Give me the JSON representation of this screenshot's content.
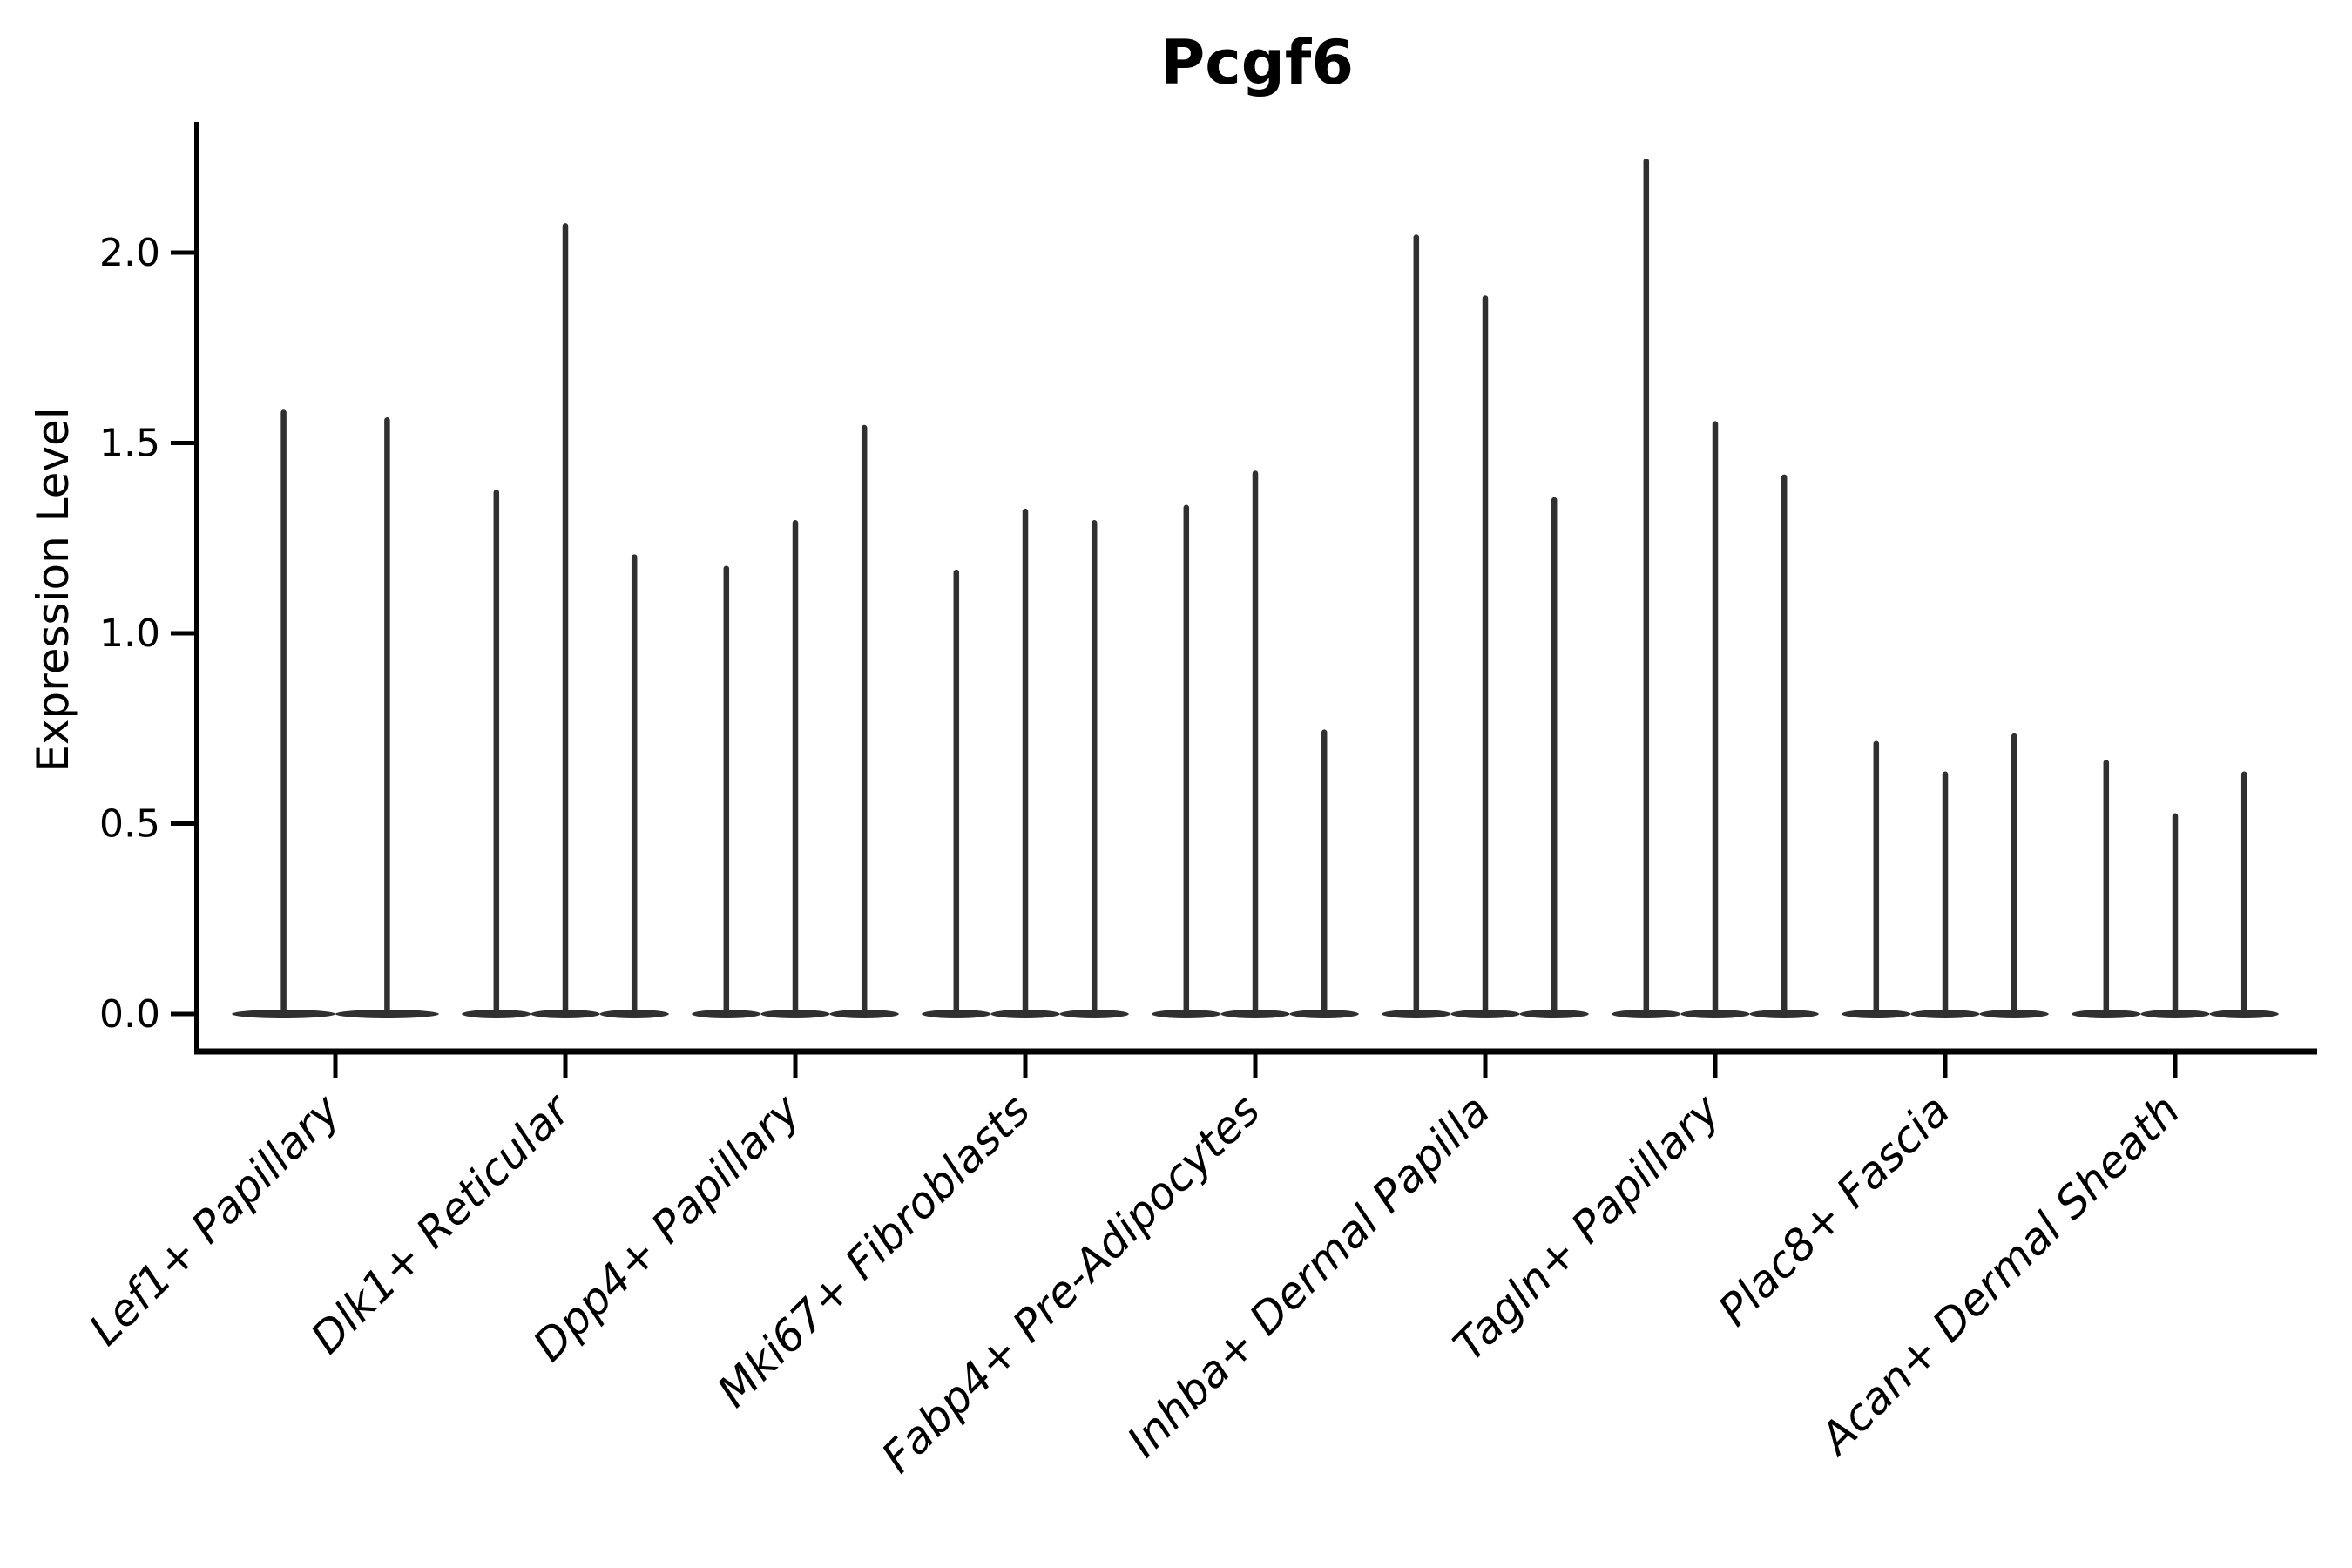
{
  "title": "Pcgf6",
  "y_axis": {
    "label": "Expression Level",
    "tick_labels": [
      "0.0",
      "0.5",
      "1.0",
      "1.5",
      "2.0"
    ],
    "tick_values": [
      0.0,
      0.5,
      1.0,
      1.5,
      2.0
    ]
  },
  "x_axis": {
    "categories": [
      "Lef1+ Papillary",
      "Dlk1+ Reticular",
      "Dpp4+ Papillary",
      "Mki67+ Fibroblasts",
      "Fabp4+ Pre-Adipocytes",
      "Inhba+ Dermal Papilla",
      "Tagln+ Papillary",
      "Plac8+ Fascia",
      "Acan+ Dermal Sheath"
    ]
  },
  "colors": {
    "violin": "#303030",
    "axis": "#000000",
    "text": "#000000",
    "background": "#ffffff"
  },
  "chart_data": {
    "type": "violin",
    "title": "Pcgf6",
    "xlabel": "",
    "ylabel": "Expression Level",
    "categories": [
      "Lef1+ Papillary",
      "Dlk1+ Reticular",
      "Dpp4+ Papillary",
      "Mki67+ Fibroblasts",
      "Fabp4+ Pre-Adipocytes",
      "Inhba+ Dermal Papilla",
      "Tagln+ Papillary",
      "Plac8+ Fascia",
      "Acan+ Dermal Sheath"
    ],
    "series": [
      {
        "category": "Lef1+ Papillary",
        "violin_count": 2,
        "max_expression": [
          1.58,
          1.56
        ]
      },
      {
        "category": "Dlk1+ Reticular",
        "violin_count": 3,
        "max_expression": [
          1.37,
          2.07,
          1.2
        ]
      },
      {
        "category": "Dpp4+ Papillary",
        "violin_count": 3,
        "max_expression": [
          1.17,
          1.29,
          1.54
        ]
      },
      {
        "category": "Mki67+ Fibroblasts",
        "violin_count": 3,
        "max_expression": [
          1.16,
          1.32,
          1.29
        ]
      },
      {
        "category": "Fabp4+ Pre-Adipocytes",
        "violin_count": 3,
        "max_expression": [
          1.33,
          1.42,
          0.74
        ]
      },
      {
        "category": "Inhba+ Dermal Papilla",
        "violin_count": 3,
        "max_expression": [
          2.04,
          1.88,
          1.35
        ]
      },
      {
        "category": "Tagln+ Papillary",
        "violin_count": 3,
        "max_expression": [
          2.24,
          1.55,
          1.41
        ]
      },
      {
        "category": "Plac8+ Fascia",
        "violin_count": 3,
        "max_expression": [
          0.71,
          0.63,
          0.73
        ]
      },
      {
        "category": "Acan+ Dermal Sheath",
        "violin_count": 3,
        "max_expression": [
          0.66,
          0.52,
          0.63
        ]
      }
    ],
    "yticks": [
      0.0,
      0.5,
      1.0,
      1.5,
      2.0
    ],
    "ylim": [
      -0.1,
      2.34
    ],
    "grid": false,
    "legend_position": "none",
    "x_tick_label_rotation_deg": 45,
    "shape_note": "Each violin is an extremely thin vertical spike from 0 up to its max expression, with a wide flat density lens at y=0; lenses of violins in the same category merge into one continuous band."
  }
}
